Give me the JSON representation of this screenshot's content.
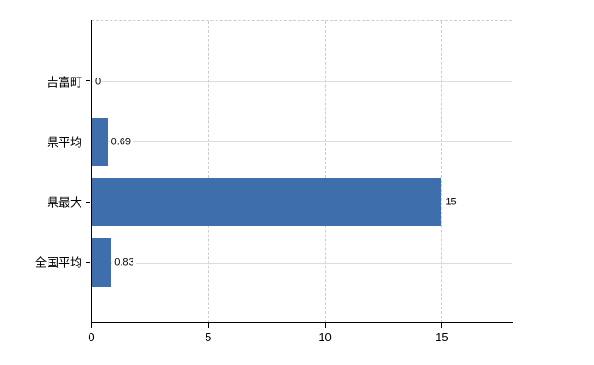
{
  "chart_data": {
    "type": "bar",
    "orientation": "horizontal",
    "title": "",
    "xlabel": "",
    "ylabel": "",
    "categories": [
      "吉富町",
      "県平均",
      "県最大",
      "全国平均"
    ],
    "values": [
      0,
      0.69,
      15,
      0.83
    ],
    "value_labels": [
      "0",
      "0.69",
      "15",
      "0.83"
    ],
    "xlim": [
      0,
      18
    ],
    "xticks": [
      0,
      5,
      10,
      15
    ],
    "xtick_labels": [
      "0",
      "5",
      "10",
      "15"
    ],
    "grid": true,
    "legend": false,
    "colors": {
      "bar": "#3e6fac",
      "row_gridline": "#d8ded8",
      "dashed_gridline": "#cccccc",
      "axis": "#000000",
      "text": "#000000",
      "background": "#ffffff"
    }
  }
}
